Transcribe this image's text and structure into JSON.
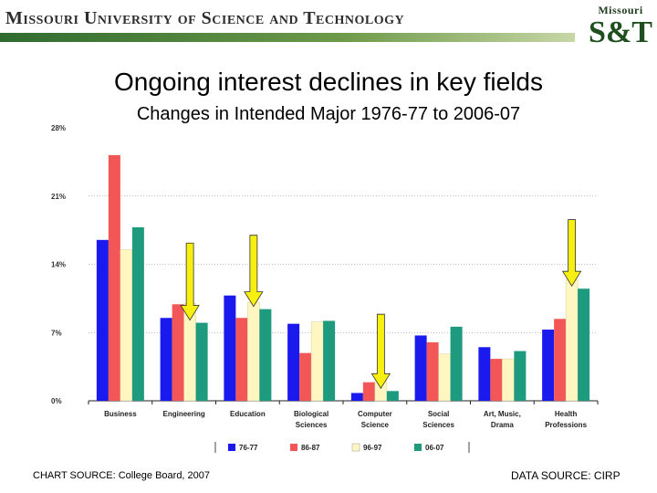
{
  "header": {
    "university_name": "Missouri University of Science and Technology",
    "logo_top": "Missouri",
    "logo_main": "S&T"
  },
  "slide_title": "Ongoing interest declines in key fields",
  "sources": {
    "chart_source": "CHART SOURCE: College Board, 2007",
    "data_source": "DATA SOURCE: CIRP"
  },
  "colors": {
    "76-77": "#1a1aee",
    "86-87": "#f25656",
    "96-97": "#fff6c2",
    "06-07": "#1e9a7e",
    "arrow": "#f7ef10"
  },
  "chart_data": {
    "type": "bar",
    "title": "Changes in Intended Major 1976-77 to 2006-07",
    "xlabel": "",
    "ylabel": "",
    "ylim": [
      0,
      28
    ],
    "yticks": [
      0,
      7,
      14,
      21,
      28
    ],
    "ytick_labels": [
      "0%",
      "7%",
      "14%",
      "21%",
      "28%"
    ],
    "grid": false,
    "legend_position": "bottom",
    "categories": [
      [
        "Business"
      ],
      [
        "Engineering"
      ],
      [
        "Education"
      ],
      [
        "Biological",
        "Sciences"
      ],
      [
        "Computer",
        "Science"
      ],
      [
        "Social",
        "Sciences"
      ],
      [
        "Art, Music,",
        "Drama"
      ],
      [
        "Health",
        "Professions"
      ]
    ],
    "series": [
      {
        "name": "76-77",
        "values": [
          16.5,
          8.5,
          10.8,
          7.9,
          0.8,
          6.7,
          5.5,
          7.3
        ]
      },
      {
        "name": "86-87",
        "values": [
          25.2,
          9.9,
          8.5,
          4.9,
          1.9,
          6.0,
          4.3,
          8.4
        ]
      },
      {
        "name": "96-97",
        "values": [
          15.5,
          10.0,
          10.1,
          8.1,
          2.7,
          4.8,
          4.3,
          12.4
        ]
      },
      {
        "name": "06-07",
        "values": [
          17.8,
          8.0,
          9.4,
          8.2,
          1.0,
          7.6,
          5.1,
          11.5
        ]
      }
    ],
    "highlight_arrows": [
      "Engineering",
      "Education",
      "Computer Science",
      "Health Professions"
    ]
  }
}
